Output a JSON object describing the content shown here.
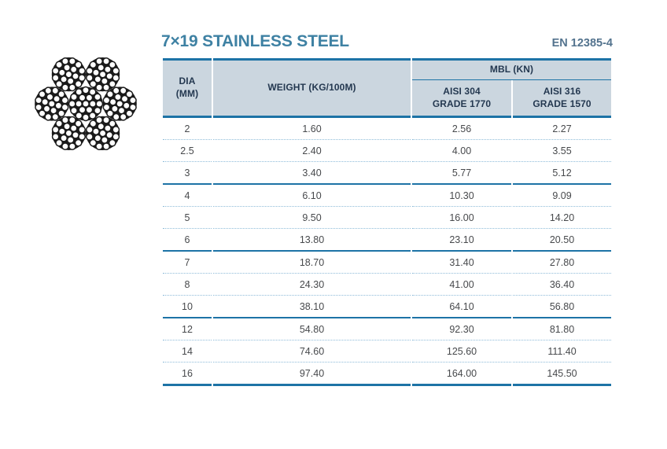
{
  "title": {
    "text": "7×19 STAINLESS STEEL"
  },
  "standard_ref": {
    "text": "EN 12385-4"
  },
  "illustration": {
    "name": "wire-rope-cross-section",
    "construction": "7×19",
    "strands": 7,
    "wires_per_strand": 19
  },
  "colors": {
    "title_color": "#3e81a3",
    "standard_color": "#53738e",
    "accent_border": "#1d73a6",
    "header_bg": "#cbd6df",
    "header_text": "#243850",
    "row_divider": "#8fbcd9",
    "data_text": "#47494c",
    "rope_ink": "#1b1b1b"
  },
  "table": {
    "headers": {
      "dia_line1": "DIA",
      "dia_line2": "(MM)",
      "weight": "WEIGHT (KG/100M)",
      "mbl_group": "MBL (KN)",
      "col304_line1": "AISI 304",
      "col304_line2": "GRADE 1770",
      "col316_line1": "AISI 316",
      "col316_line2": "GRADE 1570"
    },
    "rows": [
      {
        "dia": "2",
        "weight": "1.60",
        "aisi304": "2.56",
        "aisi316": "2.27",
        "group_end": false
      },
      {
        "dia": "2.5",
        "weight": "2.40",
        "aisi304": "4.00",
        "aisi316": "3.55",
        "group_end": false
      },
      {
        "dia": "3",
        "weight": "3.40",
        "aisi304": "5.77",
        "aisi316": "5.12",
        "group_end": true
      },
      {
        "dia": "4",
        "weight": "6.10",
        "aisi304": "10.30",
        "aisi316": "9.09",
        "group_end": false
      },
      {
        "dia": "5",
        "weight": "9.50",
        "aisi304": "16.00",
        "aisi316": "14.20",
        "group_end": false
      },
      {
        "dia": "6",
        "weight": "13.80",
        "aisi304": "23.10",
        "aisi316": "20.50",
        "group_end": true
      },
      {
        "dia": "7",
        "weight": "18.70",
        "aisi304": "31.40",
        "aisi316": "27.80",
        "group_end": false
      },
      {
        "dia": "8",
        "weight": "24.30",
        "aisi304": "41.00",
        "aisi316": "36.40",
        "group_end": false
      },
      {
        "dia": "10",
        "weight": "38.10",
        "aisi304": "64.10",
        "aisi316": "56.80",
        "group_end": true
      },
      {
        "dia": "12",
        "weight": "54.80",
        "aisi304": "92.30",
        "aisi316": "81.80",
        "group_end": false
      },
      {
        "dia": "14",
        "weight": "74.60",
        "aisi304": "125.60",
        "aisi316": "111.40",
        "group_end": false
      },
      {
        "dia": "16",
        "weight": "97.40",
        "aisi304": "164.00",
        "aisi316": "145.50",
        "group_end": false
      }
    ]
  }
}
